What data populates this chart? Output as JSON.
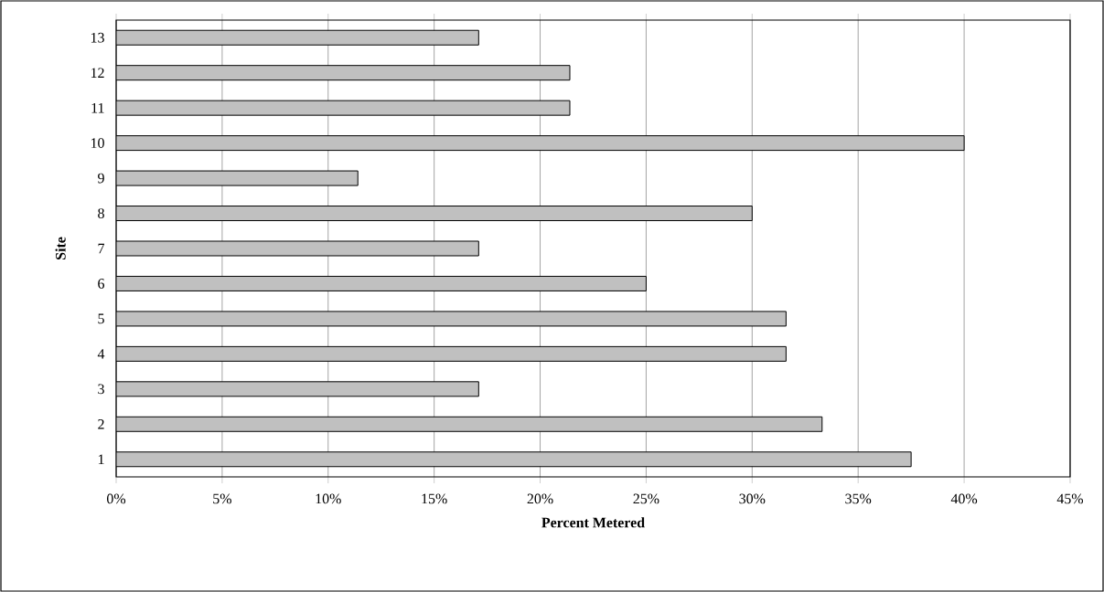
{
  "chart_data": {
    "type": "bar",
    "orientation": "horizontal",
    "xlabel": "Percent Metered",
    "ylabel": "Site",
    "categories": [
      "13",
      "12",
      "11",
      "10",
      "9",
      "8",
      "7",
      "6",
      "5",
      "4",
      "3",
      "2",
      "1"
    ],
    "values": [
      17.1,
      21.4,
      21.4,
      40,
      11.4,
      30,
      17.1,
      25,
      31.6,
      31.6,
      17.1,
      33.3,
      37.5
    ],
    "color": "#c0c0c0",
    "xlim": [
      0,
      45
    ],
    "xticks": [
      {
        "value": 0,
        "label": "0%"
      },
      {
        "value": 5,
        "label": "5%"
      },
      {
        "value": 10,
        "label": "10%"
      },
      {
        "value": 15,
        "label": "15%"
      },
      {
        "value": 20,
        "label": "20%"
      },
      {
        "value": 25,
        "label": "25%"
      },
      {
        "value": 30,
        "label": "30%"
      },
      {
        "value": 35,
        "label": "35%"
      },
      {
        "value": 40,
        "label": "40%"
      },
      {
        "value": 45,
        "label": "45%"
      }
    ],
    "grid": "x"
  }
}
